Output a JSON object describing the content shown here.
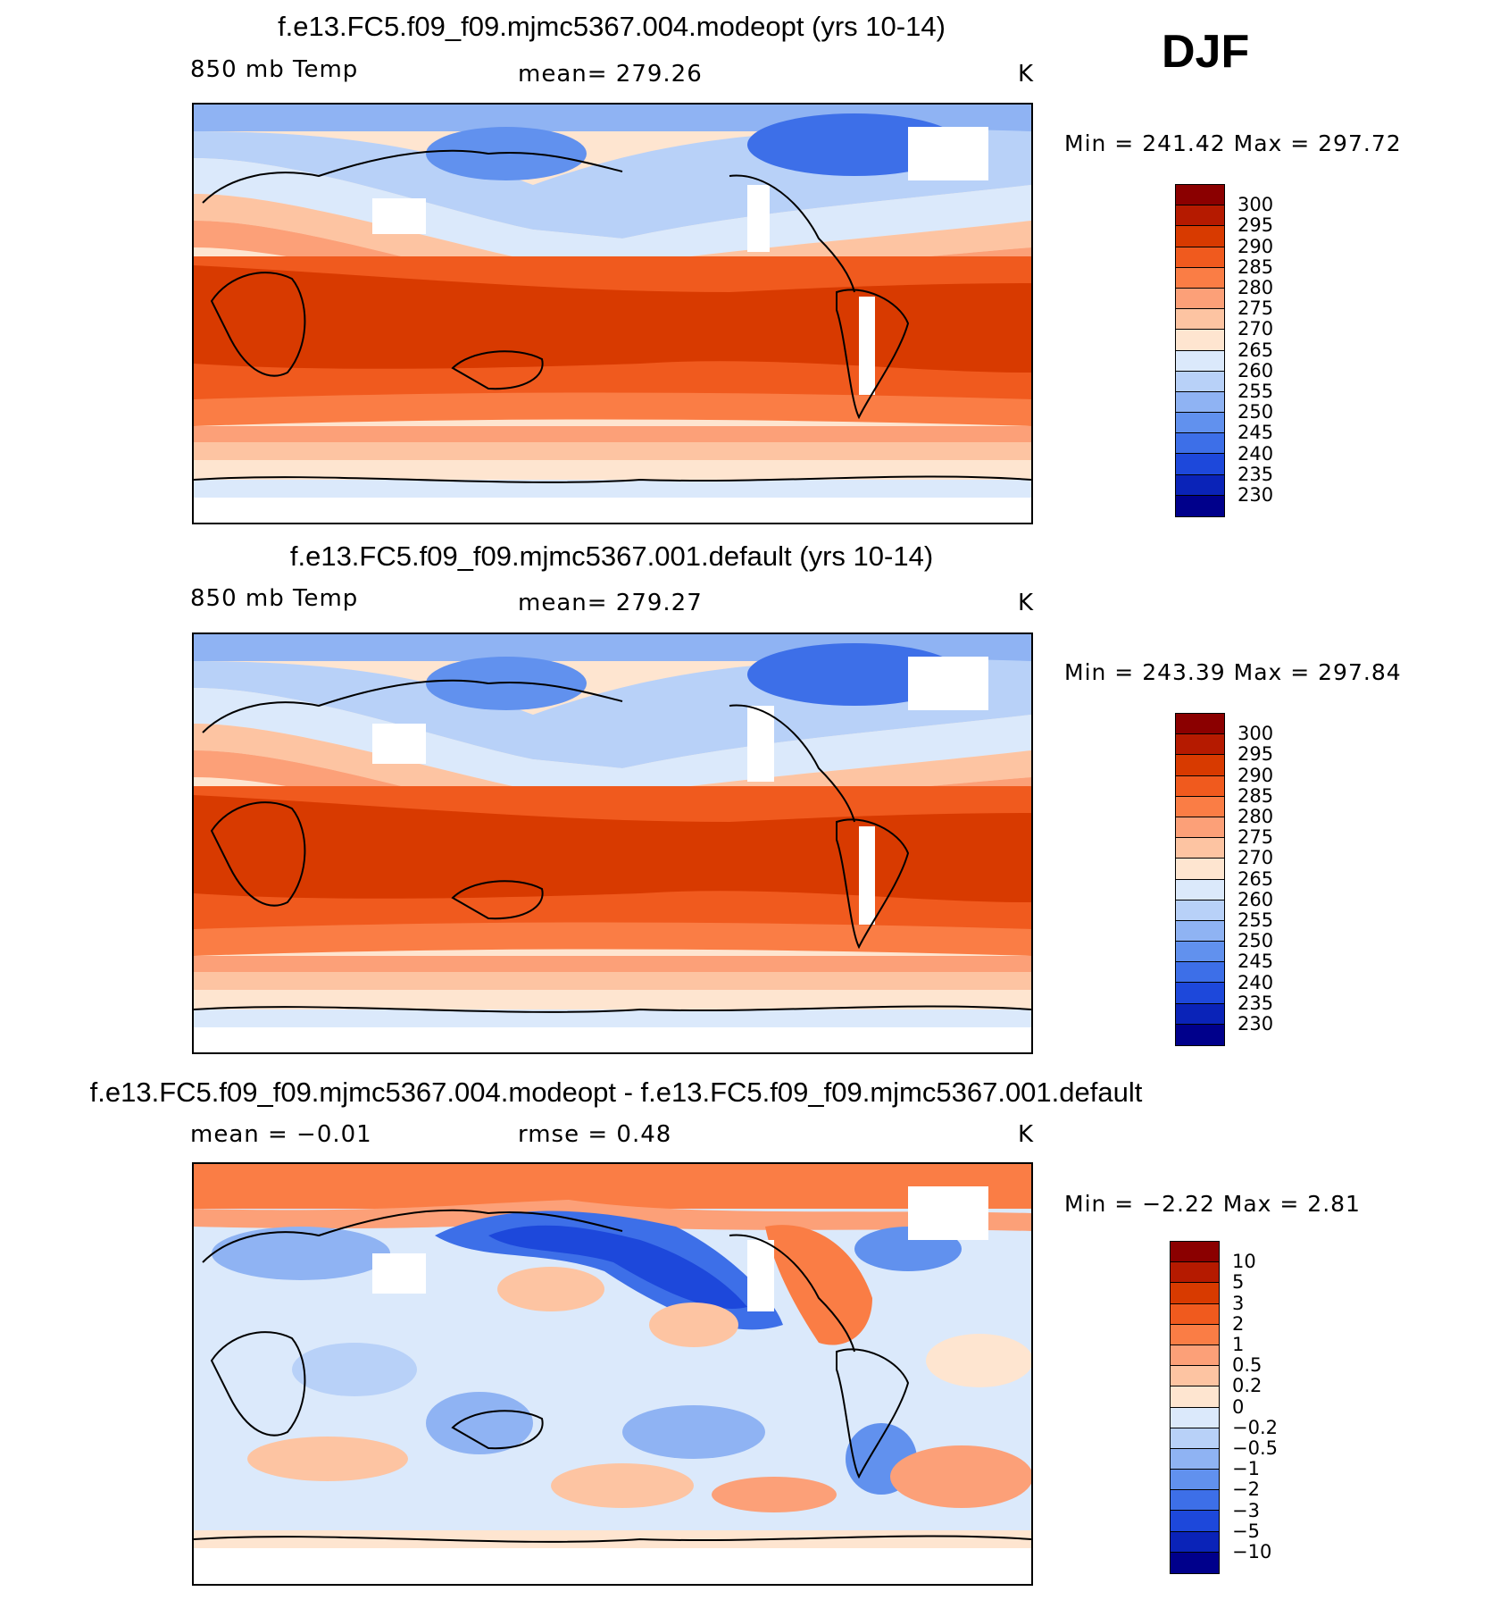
{
  "season": "DJF",
  "panels": [
    {
      "id": "top",
      "title": "f.e13.FC5.f09_f09.mjmc5367.004.modeopt (yrs 10-14)",
      "left_label": "850 mb Temp",
      "center_label": "mean= 279.26",
      "units": "K",
      "minmax": "Min = 241.42 Max = 297.72"
    },
    {
      "id": "middle",
      "title": "f.e13.FC5.f09_f09.mjmc5367.001.default (yrs 10-14)",
      "left_label": "850 mb Temp",
      "center_label": "mean= 279.27",
      "units": "K",
      "minmax": "Min = 243.39 Max = 297.84"
    },
    {
      "id": "bottom",
      "title": "f.e13.FC5.f09_f09.mjmc5367.004.modeopt - f.e13.FC5.f09_f09.mjmc5367.001.default",
      "left_label": "mean =   −0.01",
      "center_label": "rmse =    0.48",
      "units": "K",
      "minmax": "Min =   −2.22 Max =    2.81"
    }
  ],
  "colorbars": {
    "abs": {
      "labels": [
        "300",
        "295",
        "290",
        "285",
        "280",
        "275",
        "270",
        "265",
        "260",
        "255",
        "250",
        "245",
        "240",
        "235",
        "230"
      ],
      "colors": [
        "#8b0000",
        "#b51a00",
        "#d83a00",
        "#f05a1e",
        "#fa7d45",
        "#fca078",
        "#fdc4a2",
        "#fee5d0",
        "#dbe9fb",
        "#b8d1f8",
        "#8fb3f3",
        "#6191ee",
        "#3d6fe8",
        "#1d48db",
        "#0a23b8",
        "#00008b"
      ]
    },
    "diff": {
      "labels": [
        "10",
        "5",
        "3",
        "2",
        "1",
        "0.5",
        "0.2",
        "0",
        "−0.2",
        "−0.5",
        "−1",
        "−2",
        "−3",
        "−5",
        "−10"
      ],
      "colors": [
        "#8b0000",
        "#b51a00",
        "#d83a00",
        "#f05a1e",
        "#fa7d45",
        "#fca078",
        "#fdc4a2",
        "#fee5d0",
        "#dbe9fb",
        "#b8d1f8",
        "#8fb3f3",
        "#6191ee",
        "#3d6fe8",
        "#1d48db",
        "#0a23b8",
        "#00008b"
      ]
    }
  }
}
